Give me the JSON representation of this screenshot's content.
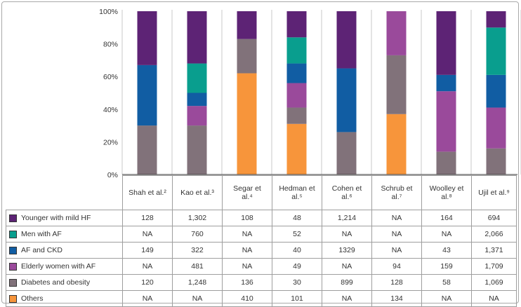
{
  "chart_data": {
    "type": "bar",
    "stacked": true,
    "ylim": [
      0,
      100
    ],
    "yticks": [
      0,
      20,
      40,
      60,
      80,
      100
    ],
    "ytick_labels": [
      "0%",
      "20%",
      "40%",
      "60%",
      "80%",
      "100%"
    ],
    "categories": [
      "Shah et al.²",
      "Kao et al.³",
      "Segar et al.⁴",
      "Hedman et al.⁵",
      "Cohen et al.⁶",
      "Schrub et al.⁷",
      "Woolley et al.⁸",
      "Ujil et al.⁹"
    ],
    "series": [
      {
        "name": "Others",
        "color": "#f7953b",
        "values": [
          0,
          0,
          62,
          31,
          0,
          37,
          0,
          0
        ],
        "table": [
          "NA",
          "NA",
          "410",
          "101",
          "NA",
          "134",
          "NA",
          "NA"
        ]
      },
      {
        "name": "Diabetes and obesity",
        "color": "#81727a",
        "values": [
          30,
          30,
          21,
          10,
          26,
          36,
          14,
          16
        ],
        "table": [
          "120",
          "1,248",
          "136",
          "30",
          "899",
          "128",
          "58",
          "1,069"
        ]
      },
      {
        "name": "Elderly women with AF",
        "color": "#9a4a9b",
        "values": [
          0,
          12,
          0,
          15,
          0,
          27,
          37,
          25
        ],
        "table": [
          "NA",
          "481",
          "NA",
          "49",
          "NA",
          "94",
          "159",
          "1,709"
        ]
      },
      {
        "name": "AF and CKD",
        "color": "#115da3",
        "values": [
          37,
          8,
          0,
          12,
          39,
          0,
          10,
          20
        ],
        "table": [
          "149",
          "322",
          "NA",
          "40",
          "1329",
          "NA",
          "43",
          "1,371"
        ]
      },
      {
        "name": "Men with AF",
        "color": "#099e8e",
        "values": [
          0,
          18,
          0,
          16,
          0,
          0,
          0,
          29
        ],
        "table": [
          "NA",
          "760",
          "NA",
          "52",
          "NA",
          "NA",
          "NA",
          "2,066"
        ]
      },
      {
        "name": "Younger with mild HF",
        "color": "#5d2375",
        "values": [
          33,
          32,
          17,
          16,
          35,
          0,
          39,
          10
        ],
        "table": [
          "128",
          "1,302",
          "108",
          "48",
          "1,214",
          "NA",
          "164",
          "694"
        ]
      }
    ],
    "table_row_order": [
      "Younger with mild HF",
      "Men with AF",
      "AF and CKD",
      "Elderly women with AF",
      "Diabetes and obesity",
      "Others"
    ],
    "grid": false
  },
  "colors": {
    "axis": "#333333",
    "gridline": "#c9c9c9",
    "table_border": "#9e9e9e"
  }
}
